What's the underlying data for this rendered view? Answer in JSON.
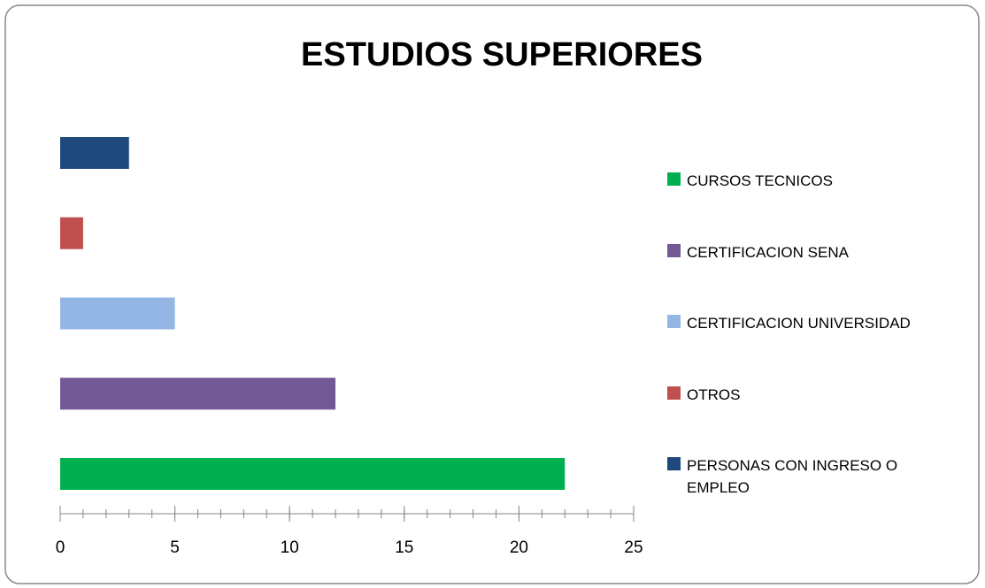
{
  "chart_data": {
    "type": "bar",
    "orientation": "horizontal",
    "title": "ESTUDIOS SUPERIORES",
    "categories": [
      "CURSOS TECNICOS",
      "CERTIFICACION SENA",
      "CERTIFICACION UNIVERSIDAD",
      "OTROS",
      "PERSONAS CON INGRESO O EMPLEO"
    ],
    "values": [
      22,
      12,
      5,
      1,
      3
    ],
    "colors": [
      "#00b050",
      "#725894",
      "#93b6e4",
      "#c0504d",
      "#1f497d"
    ],
    "xlim": [
      0,
      25
    ],
    "xticks": [
      0,
      5,
      10,
      15,
      20,
      25
    ],
    "xminor": 1,
    "legend": "right"
  }
}
